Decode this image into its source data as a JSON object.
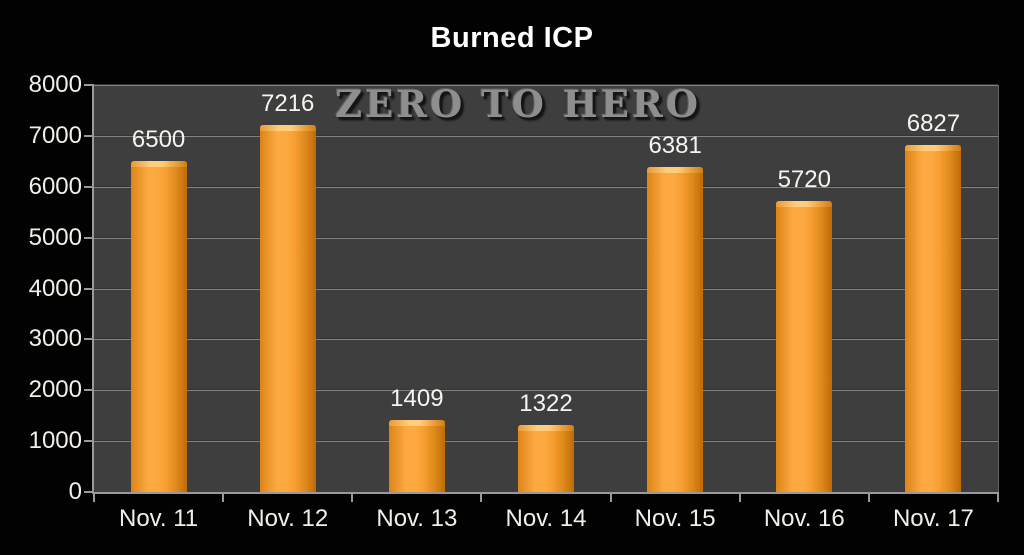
{
  "header": {
    "title": "Burned ICP"
  },
  "watermark": {
    "text": "ZERO TO HERO"
  },
  "colors": {
    "page_background": "#020202",
    "plot_background": "#3e3e3e",
    "gridline": "#828282",
    "axis": "#9a9a9a",
    "text": "#f2efe9",
    "title_text": "#ffffff",
    "watermark_text": "#8e8e8e",
    "bar_fill": {
      "edge_left": "#DD8416",
      "mid_light": "#FCA942",
      "mid": "#F89E31",
      "edge_right": "#BF6A06",
      "top_highlight": "#FFCE7C",
      "top_base": "#E99A33"
    }
  },
  "chart_data": {
    "type": "bar",
    "title": "Burned ICP",
    "categories": [
      "Nov. 11",
      "Nov. 12",
      "Nov. 13",
      "Nov. 14",
      "Nov. 15",
      "Nov. 16",
      "Nov. 17"
    ],
    "values": [
      6500,
      7216,
      1409,
      1322,
      6381,
      5720,
      6827
    ],
    "data_labels_shown": true,
    "xlabel": "",
    "ylabel": "",
    "ylim": [
      0,
      8000
    ],
    "ytick_step": 1000,
    "ytick_labels": [
      "0",
      "1000",
      "2000",
      "3000",
      "4000",
      "5000",
      "6000",
      "7000",
      "8000"
    ],
    "grid": true,
    "legend": "none",
    "watermark": "ZERO TO HERO"
  }
}
